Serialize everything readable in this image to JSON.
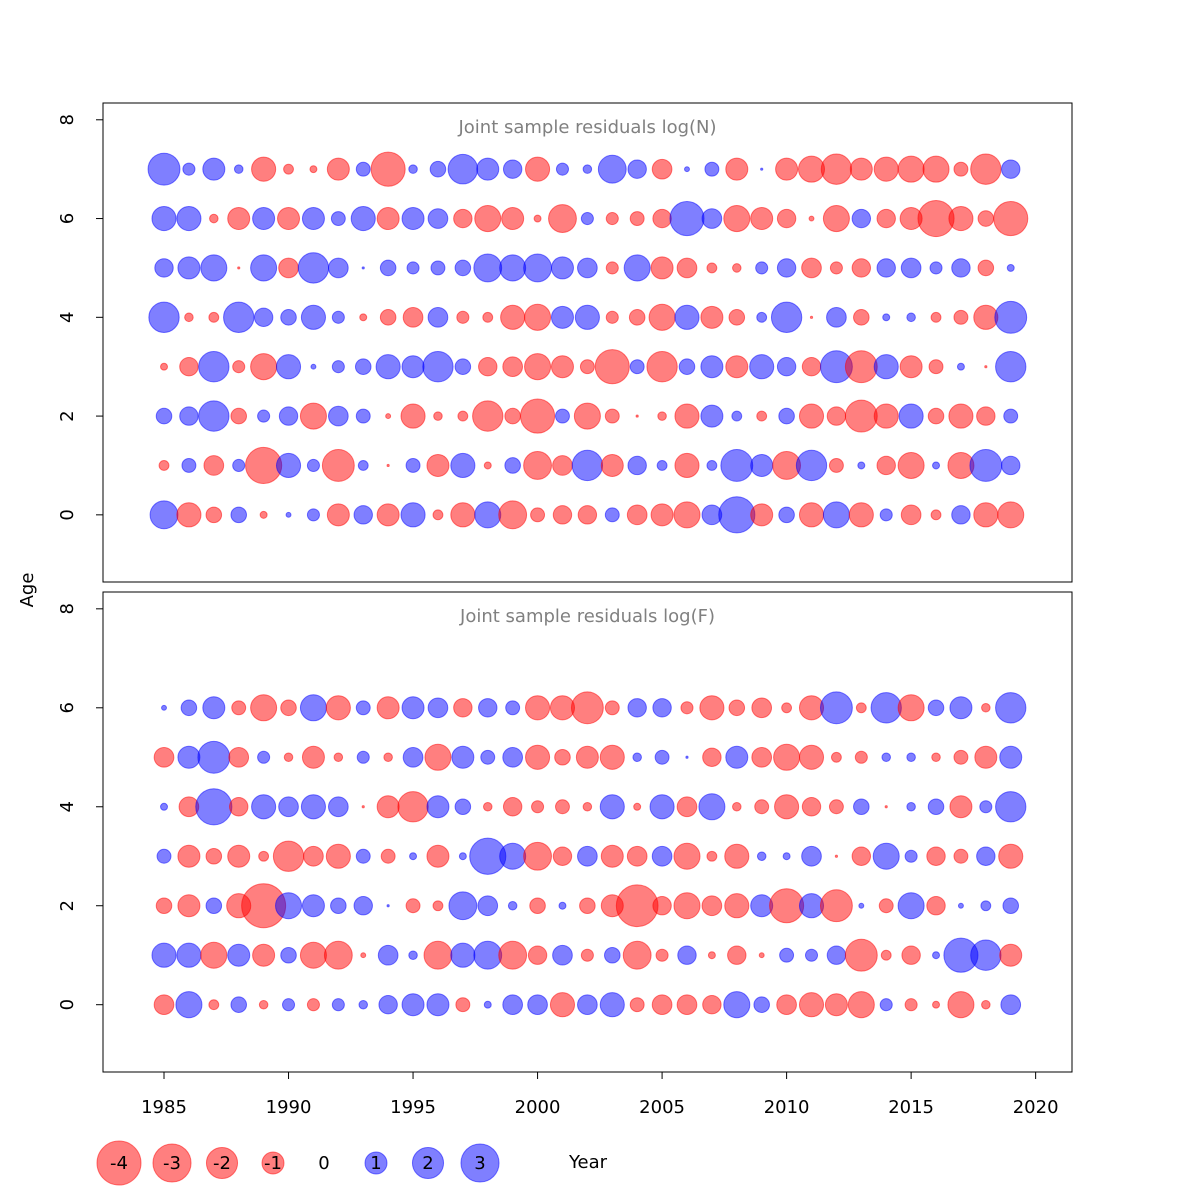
{
  "chart_data": [
    {
      "type": "bubble",
      "title": "Joint sample residuals log(N)",
      "x": [
        1985,
        1986,
        1987,
        1988,
        1989,
        1990,
        1991,
        1992,
        1993,
        1994,
        1995,
        1996,
        1997,
        1998,
        1999,
        2000,
        2001,
        2002,
        2003,
        2004,
        2005,
        2006,
        2007,
        2008,
        2009,
        2010,
        2011,
        2012,
        2013,
        2014,
        2015,
        2016,
        2017,
        2018,
        2019
      ],
      "y": [
        0,
        1,
        2,
        3,
        4,
        5,
        6,
        7
      ],
      "values": [
        [
          1.6,
          -1.2,
          -0.5,
          0.5,
          -0.1,
          0.05,
          0.3,
          -1.0,
          0.7,
          -1.0,
          1.2,
          -0.2,
          -1.2,
          1.4,
          -1.6,
          -0.4,
          -0.7,
          -0.7,
          0.4,
          -0.8,
          -1.0,
          -1.4,
          0.8,
          2.7,
          -1.0,
          0.5,
          -1.2,
          1.4,
          -1.2,
          0.3,
          -0.8,
          -0.2,
          0.7,
          -1.2,
          -1.4
        ],
        [
          -0.2,
          0.4,
          -0.8,
          0.3,
          -2.7,
          1.2,
          0.3,
          -2.1,
          0.2,
          -0.01,
          0.4,
          -1.0,
          1.2,
          -0.1,
          0.5,
          -1.6,
          -0.8,
          1.9,
          -1.0,
          0.7,
          0.2,
          -1.2,
          0.2,
          2.1,
          1.0,
          -1.6,
          1.9,
          -0.4,
          0.1,
          -0.7,
          -1.4,
          0.1,
          -1.4,
          2.1,
          0.7
        ],
        [
          0.5,
          0.7,
          1.9,
          -0.5,
          0.3,
          0.7,
          -1.4,
          0.8,
          0.4,
          -0.05,
          -1.2,
          -0.15,
          -0.2,
          -1.9,
          -0.5,
          -2.4,
          0.4,
          -1.4,
          -0.4,
          -0.01,
          -0.15,
          -1.2,
          1.0,
          0.2,
          -0.2,
          0.5,
          -1.2,
          -0.7,
          -2.1,
          -1.2,
          1.2,
          -0.5,
          -1.2,
          -0.7,
          0.4
        ],
        [
          -0.1,
          -0.7,
          1.9,
          -0.3,
          -1.4,
          1.2,
          0.05,
          0.3,
          0.5,
          1.2,
          1.0,
          1.9,
          0.5,
          -0.7,
          -0.8,
          -1.4,
          -1.0,
          -0.4,
          -2.4,
          0.4,
          -1.9,
          0.5,
          1.0,
          -1.0,
          1.2,
          0.7,
          -0.7,
          2.1,
          -2.1,
          1.2,
          -1.0,
          -0.4,
          0.1,
          -0.01,
          1.9
        ],
        [
          1.9,
          -0.15,
          -0.2,
          1.9,
          0.7,
          0.5,
          1.2,
          0.3,
          -0.1,
          -0.5,
          -0.8,
          0.8,
          -0.3,
          -0.2,
          -1.2,
          -1.4,
          1.0,
          1.2,
          -0.3,
          -0.5,
          -1.4,
          1.2,
          -1.0,
          -0.5,
          0.2,
          1.9,
          -0.01,
          0.8,
          -0.5,
          0.1,
          0.15,
          -0.2,
          -0.4,
          -1.2,
          2.1
        ],
        [
          0.7,
          1.0,
          1.4,
          -0.01,
          1.4,
          -0.8,
          1.9,
          0.8,
          0.01,
          0.5,
          0.3,
          0.4,
          0.5,
          1.6,
          1.4,
          1.6,
          1.0,
          0.8,
          -0.3,
          1.4,
          -1.0,
          -0.8,
          -0.2,
          -0.15,
          0.3,
          0.7,
          -0.8,
          -0.3,
          -0.7,
          0.7,
          0.8,
          0.3,
          0.7,
          -0.5,
          0.1
        ],
        [
          1.2,
          1.2,
          -0.15,
          -1.0,
          1.0,
          -1.0,
          1.0,
          0.4,
          1.2,
          -1.0,
          1.0,
          0.8,
          -0.7,
          -1.4,
          -1.0,
          -0.1,
          -1.6,
          0.3,
          -0.3,
          -0.4,
          -0.7,
          2.4,
          0.8,
          -1.4,
          -1.0,
          -0.7,
          -0.05,
          -1.4,
          0.7,
          -0.7,
          -1.0,
          -2.7,
          -1.2,
          -0.5,
          -2.4
        ],
        [
          2.1,
          0.3,
          1.0,
          0.15,
          -1.2,
          -0.2,
          -0.1,
          -1.0,
          0.4,
          -2.4,
          0.15,
          0.5,
          1.8,
          1.0,
          0.7,
          -1.2,
          0.3,
          0.15,
          1.6,
          0.7,
          -0.8,
          0.05,
          0.4,
          -1.0,
          0.01,
          -1.0,
          -1.4,
          -1.9,
          -1.0,
          -1.2,
          -1.4,
          -1.4,
          -0.4,
          -1.9,
          0.7
        ]
      ],
      "xlim": [
        1982.55,
        2021.46
      ],
      "ylim": [
        -1.36,
        8.34
      ],
      "yticks": [
        0,
        2,
        4,
        6,
        8
      ]
    },
    {
      "type": "bubble",
      "title": "Joint sample residuals log(F)",
      "x": [
        1985,
        1986,
        1987,
        1988,
        1989,
        1990,
        1991,
        1992,
        1993,
        1994,
        1995,
        1996,
        1997,
        1998,
        1999,
        2000,
        2001,
        2002,
        2003,
        2004,
        2005,
        2006,
        2007,
        2008,
        2009,
        2010,
        2011,
        2012,
        2013,
        2014,
        2015,
        2016,
        2017,
        2018,
        2019
      ],
      "y": [
        0,
        1,
        2,
        3,
        4,
        5,
        6
      ],
      "values": [
        [
          -0.8,
          1.4,
          -0.2,
          0.5,
          -0.15,
          0.3,
          -0.3,
          0.3,
          0.15,
          0.7,
          1.0,
          1.0,
          -0.4,
          0.1,
          0.8,
          0.8,
          -1.2,
          0.8,
          1.2,
          -0.4,
          -0.8,
          -0.8,
          -0.7,
          1.4,
          0.5,
          -0.8,
          -1.2,
          -1.0,
          -1.4,
          0.3,
          -0.3,
          -0.1,
          -1.4,
          -0.15,
          0.8
        ],
        [
          1.2,
          1.2,
          -1.4,
          1.0,
          -1.0,
          0.5,
          -1.4,
          -1.6,
          -0.05,
          0.8,
          0.15,
          -1.6,
          1.2,
          1.6,
          -1.6,
          -0.7,
          0.8,
          -0.3,
          0.5,
          -1.6,
          -0.3,
          0.7,
          -0.1,
          -0.7,
          -0.05,
          0.4,
          0.3,
          0.7,
          -2.1,
          -0.2,
          -0.7,
          0.1,
          2.4,
          1.9,
          -1.0
        ],
        [
          -0.5,
          -1.0,
          0.5,
          -1.2,
          -4.0,
          1.4,
          1.0,
          0.5,
          0.7,
          0.01,
          -0.4,
          -0.2,
          1.6,
          0.8,
          0.15,
          -0.5,
          0.1,
          -0.5,
          -1.0,
          -3.6,
          -0.7,
          -1.4,
          -0.8,
          -1.2,
          1.0,
          -2.4,
          1.2,
          -2.1,
          0.05,
          -0.4,
          1.4,
          -0.7,
          0.05,
          0.2,
          0.5
        ],
        [
          0.4,
          -1.0,
          -0.5,
          -1.0,
          -0.2,
          -1.9,
          -0.8,
          -1.2,
          0.4,
          -0.4,
          0.1,
          -1.0,
          0.1,
          2.7,
          1.4,
          -1.6,
          -0.7,
          0.8,
          -1.0,
          -0.8,
          0.8,
          -1.4,
          -0.2,
          -1.2,
          0.15,
          0.1,
          0.8,
          -0.01,
          -0.7,
          1.4,
          0.3,
          -0.7,
          -0.4,
          0.7,
          -1.2
        ],
        [
          0.1,
          -0.8,
          2.7,
          -0.7,
          1.2,
          0.8,
          1.2,
          0.8,
          -0.01,
          -1.0,
          -1.9,
          1.0,
          0.5,
          -0.15,
          -0.7,
          -0.3,
          -0.4,
          -0.15,
          1.2,
          -0.1,
          1.2,
          -0.8,
          1.4,
          -0.15,
          -0.4,
          -1.2,
          -0.7,
          -0.4,
          0.5,
          -0.01,
          0.15,
          0.5,
          -1.0,
          0.3,
          1.9
        ],
        [
          -0.8,
          1.0,
          2.1,
          -0.8,
          0.3,
          -0.15,
          -1.0,
          -0.15,
          0.3,
          -0.15,
          0.8,
          -1.4,
          1.0,
          0.4,
          0.8,
          -1.2,
          -0.5,
          -1.0,
          -1.2,
          0.15,
          0.4,
          0.01,
          -0.7,
          1.0,
          -0.8,
          -1.4,
          -1.2,
          -0.2,
          -0.3,
          0.15,
          0.15,
          -0.15,
          -0.4,
          -1.0,
          1.0
        ],
        [
          0.05,
          0.5,
          1.0,
          -0.4,
          -1.4,
          -0.5,
          1.4,
          -1.2,
          0.4,
          -1.0,
          1.0,
          0.8,
          -0.7,
          0.7,
          0.4,
          -1.2,
          -1.2,
          -2.1,
          -0.4,
          0.7,
          0.7,
          -0.3,
          -1.2,
          -0.5,
          -0.8,
          -0.2,
          -1.2,
          2.1,
          -0.2,
          1.9,
          -1.4,
          0.5,
          1.0,
          -0.15,
          1.9
        ]
      ],
      "xlim": [
        1982.55,
        2021.46
      ],
      "ylim": [
        -1.36,
        8.34
      ],
      "yticks": [
        0,
        2,
        4,
        6,
        8
      ],
      "xticks": [
        1985,
        1990,
        1995,
        2000,
        2005,
        2010,
        2015,
        2020
      ]
    }
  ],
  "x_label": "Year",
  "y_label": "Age",
  "legend": [
    -4,
    -3,
    -2,
    -1,
    0,
    1,
    2,
    3
  ],
  "negative_color": "rgba(255,0,0,0.5)",
  "positive_color": "rgba(0,0,255,0.5)"
}
